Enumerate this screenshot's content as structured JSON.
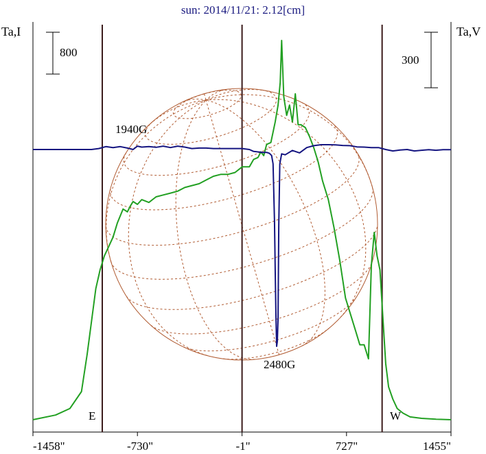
{
  "chart_data": {
    "type": "line",
    "title": "sun: 2014/11/21: 2.12[cm]",
    "y_left_label": "Ta,I",
    "y_right_label": "Ta,V",
    "scale_bar_left": "800",
    "scale_bar_right": "300",
    "x_unit": "arcsec",
    "x_ticks": [
      "-1458\"",
      "-730\"",
      "-1\"",
      "727\"",
      "1455\""
    ],
    "x_tick_values": [
      -1458,
      -730,
      -1,
      727,
      1455
    ],
    "xlim": [
      -1458,
      1455
    ],
    "limb_markers": [
      -975,
      975
    ],
    "limb_labels": [
      "E",
      "W"
    ],
    "annotations": [
      {
        "text": "1940G",
        "x": -780
      },
      {
        "text": "2480G",
        "x": 240
      }
    ],
    "colors": {
      "intensity": "#22a022",
      "polarization": "#141480",
      "disk": "#b05a30",
      "markers": "#3a1a1a",
      "title": "#1a1a80"
    },
    "series": [
      {
        "key": "I",
        "x": [
          -1458,
          -1300,
          -1200,
          -1120,
          -1080,
          -1050,
          -1020,
          -990,
          -960,
          -930,
          -900,
          -870,
          -830,
          -800,
          -780,
          -760,
          -730,
          -700,
          -650,
          -600,
          -550,
          -500,
          -450,
          -400,
          -350,
          -300,
          -250,
          -200,
          -150,
          -100,
          -50,
          0,
          50,
          80,
          110,
          130,
          150,
          170,
          200,
          230,
          250,
          265,
          275,
          290,
          310,
          330,
          350,
          370,
          390,
          410,
          440,
          470,
          500,
          530,
          560,
          600,
          640,
          680,
          720,
          760,
          790,
          820,
          850,
          880,
          900,
          920,
          940,
          960,
          980,
          1000,
          1020,
          1050,
          1080,
          1120,
          1170,
          1250,
          1350,
          1455
        ],
        "y": [
          0,
          50,
          120,
          300,
          700,
          1050,
          1400,
          1600,
          1750,
          1850,
          1950,
          2100,
          2250,
          2220,
          2280,
          2330,
          2300,
          2350,
          2320,
          2380,
          2400,
          2420,
          2440,
          2480,
          2500,
          2520,
          2560,
          2600,
          2620,
          2620,
          2640,
          2700,
          2700,
          2780,
          2800,
          2860,
          2820,
          2940,
          2960,
          3180,
          3360,
          3600,
          4050,
          3450,
          3250,
          3360,
          3180,
          3480,
          3150,
          3150,
          3120,
          3020,
          2900,
          2750,
          2550,
          2350,
          2050,
          1700,
          1300,
          1100,
          950,
          800,
          800,
          650,
          1650,
          2000,
          1750,
          1600,
          1100,
          600,
          350,
          220,
          120,
          70,
          30,
          15,
          5,
          0
        ]
      },
      {
        "key": "V",
        "x": [
          -1458,
          -1350,
          -1250,
          -1150,
          -1050,
          -1000,
          -950,
          -900,
          -850,
          -800,
          -760,
          -730,
          -700,
          -650,
          -600,
          -550,
          -500,
          -450,
          -400,
          -350,
          -300,
          -250,
          -200,
          -150,
          -100,
          -50,
          0,
          50,
          80,
          110,
          140,
          170,
          190,
          205,
          215,
          225,
          230,
          235,
          240,
          245,
          250,
          255,
          262,
          275,
          300,
          350,
          400,
          450,
          500,
          550,
          600,
          650,
          700,
          750,
          800,
          850,
          900,
          950,
          1000,
          1050,
          1100,
          1150,
          1200,
          1250,
          1300,
          1350,
          1400,
          1455
        ],
        "y": [
          0,
          0,
          0,
          0,
          0,
          4,
          12,
          8,
          12,
          6,
          0,
          14,
          10,
          12,
          9,
          14,
          8,
          14,
          10,
          4,
          6,
          6,
          4,
          4,
          4,
          4,
          4,
          0,
          -8,
          -10,
          -12,
          -12,
          -16,
          -25,
          -60,
          -300,
          -500,
          -680,
          -820,
          -800,
          -700,
          -320,
          -60,
          -18,
          -22,
          -4,
          -14,
          8,
          16,
          20,
          20,
          19,
          17,
          16,
          11,
          10,
          8,
          8,
          0,
          -6,
          -2,
          0,
          -6,
          -3,
          -1,
          -3,
          -1,
          -1
        ]
      }
    ]
  }
}
